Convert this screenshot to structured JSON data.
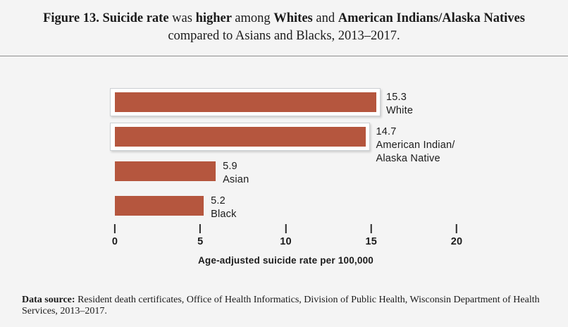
{
  "title": {
    "line1_segments": [
      {
        "text": "Figure 13. Suicide rate ",
        "bold": true
      },
      {
        "text": "was ",
        "bold": false
      },
      {
        "text": "higher ",
        "bold": true
      },
      {
        "text": "among ",
        "bold": false
      },
      {
        "text": "Whites ",
        "bold": true
      },
      {
        "text": "and ",
        "bold": false
      },
      {
        "text": "American Indians/Alaska Natives",
        "bold": true
      }
    ],
    "line2": "compared to Asians and Blacks, 2013–2017."
  },
  "chart_data": {
    "type": "bar",
    "orientation": "horizontal",
    "title": "Figure 13. Suicide rate was higher among Whites and American Indians/Alaska Natives compared to Asians and Blacks, 2013–2017.",
    "categories": [
      "White",
      "American Indian/Alaska Native",
      "Asian",
      "Black"
    ],
    "category_label_lines": [
      [
        "White"
      ],
      [
        "American Indian/",
        "Alaska Native"
      ],
      [
        "Asian"
      ],
      [
        "Black"
      ]
    ],
    "values": [
      15.3,
      14.7,
      5.9,
      5.2
    ],
    "value_labels": [
      "15.3",
      "14.7",
      "5.9",
      "5.2"
    ],
    "highlighted": [
      true,
      true,
      false,
      false
    ],
    "xlabel": "Age-adjusted suicide rate per 100,000",
    "xlim": [
      0,
      20
    ],
    "xticks": [
      0,
      5,
      10,
      15,
      20
    ],
    "bar_color": "#b5563e",
    "grid": false,
    "legend": false
  },
  "footer": {
    "label": "Data source:",
    "text": " Resident death certificates, Office of Health Informatics, Division of Public Health, Wisconsin Department of Health Services, 2013–2017."
  }
}
